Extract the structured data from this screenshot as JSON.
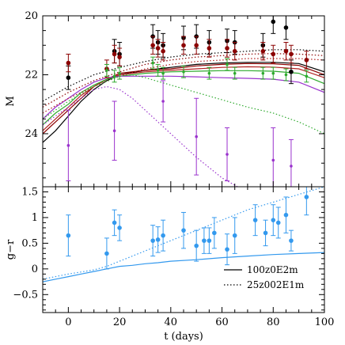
{
  "chart_data": [
    {
      "type": "line",
      "panel": "top",
      "ylabel": "M",
      "xlim": [
        -10,
        100
      ],
      "ylim": [
        25.8,
        20
      ],
      "y_inverted": true,
      "yticks": [
        20,
        22,
        24
      ],
      "grid": false,
      "series": [
        {
          "style": "solid",
          "color": "#000000",
          "x": [
            -10,
            -5,
            0,
            5,
            10,
            15,
            20,
            30,
            40,
            50,
            60,
            70,
            80,
            90,
            100
          ],
          "y": [
            24.3,
            23.9,
            23.4,
            22.9,
            22.5,
            22.2,
            22.0,
            21.85,
            21.75,
            21.65,
            21.6,
            21.58,
            21.58,
            21.62,
            21.9
          ]
        },
        {
          "style": "solid",
          "color": "#8b0000",
          "x": [
            -10,
            -5,
            0,
            5,
            10,
            15,
            20,
            30,
            40,
            50,
            60,
            70,
            80,
            90,
            100
          ],
          "y": [
            24.0,
            23.6,
            23.2,
            22.8,
            22.4,
            22.15,
            21.95,
            21.85,
            21.8,
            21.7,
            21.65,
            21.62,
            21.63,
            21.68,
            22.0
          ]
        },
        {
          "style": "solid",
          "color": "#b22222",
          "x": [
            -10,
            -5,
            0,
            5,
            10,
            15,
            20,
            30,
            40,
            50,
            60,
            70,
            80,
            90,
            100
          ],
          "y": [
            23.9,
            23.5,
            23.1,
            22.7,
            22.4,
            22.15,
            22.0,
            21.9,
            21.85,
            21.8,
            21.75,
            21.73,
            21.74,
            21.8,
            22.1
          ]
        },
        {
          "style": "solid",
          "color": "#2eaa2e",
          "x": [
            -10,
            -5,
            0,
            5,
            10,
            15,
            20,
            30,
            40,
            50,
            60,
            70,
            80,
            90,
            100
          ],
          "y": [
            23.7,
            23.3,
            23.0,
            22.6,
            22.35,
            22.15,
            22.05,
            21.95,
            21.9,
            21.88,
            21.86,
            21.86,
            21.88,
            21.95,
            22.3
          ]
        },
        {
          "style": "solid",
          "color": "#9a32cd",
          "x": [
            -10,
            -5,
            0,
            5,
            10,
            15,
            20,
            30,
            40,
            50,
            60,
            70,
            80,
            90,
            100
          ],
          "y": [
            23.5,
            23.1,
            22.8,
            22.5,
            22.25,
            22.1,
            22.05,
            22.05,
            22.05,
            22.07,
            22.1,
            22.12,
            22.15,
            22.25,
            22.6
          ]
        },
        {
          "style": "dotted",
          "color": "#000000",
          "x": [
            -10,
            0,
            10,
            20,
            30,
            40,
            50,
            60,
            70,
            80,
            90,
            100
          ],
          "y": [
            22.9,
            22.4,
            22.0,
            21.75,
            21.55,
            21.4,
            21.3,
            21.25,
            21.2,
            21.15,
            21.15,
            21.2
          ]
        },
        {
          "style": "dotted",
          "color": "#8b0000",
          "x": [
            -10,
            0,
            10,
            20,
            30,
            40,
            50,
            60,
            70,
            80,
            90,
            100
          ],
          "y": [
            23.1,
            22.6,
            22.2,
            21.9,
            21.65,
            21.5,
            21.4,
            21.35,
            21.3,
            21.28,
            21.3,
            21.35
          ]
        },
        {
          "style": "dotted",
          "color": "#b22222",
          "x": [
            -10,
            0,
            10,
            20,
            30,
            40,
            50,
            60,
            70,
            80,
            90,
            100
          ],
          "y": [
            23.3,
            22.8,
            22.4,
            22.05,
            21.8,
            21.65,
            21.55,
            21.5,
            21.45,
            21.45,
            21.45,
            21.5
          ]
        },
        {
          "style": "dotted",
          "color": "#2eaa2e",
          "x": [
            -10,
            0,
            10,
            20,
            25,
            30,
            40,
            50,
            60,
            70,
            80,
            90,
            100
          ],
          "y": [
            23.5,
            22.9,
            22.4,
            22.05,
            22.0,
            22.1,
            22.35,
            22.6,
            22.85,
            23.1,
            23.3,
            23.6,
            24.0
          ]
        },
        {
          "style": "dotted",
          "color": "#9a32cd",
          "x": [
            -10,
            0,
            5,
            10,
            15,
            20,
            25,
            30,
            40,
            50,
            60,
            70
          ],
          "y": [
            23.7,
            23.1,
            22.8,
            22.5,
            22.4,
            22.5,
            22.8,
            23.2,
            24.0,
            24.8,
            25.5,
            26.0
          ]
        }
      ],
      "observations": [
        {
          "color": "#000000",
          "x": [
            0,
            18,
            20,
            33,
            35,
            37,
            45,
            50,
            55,
            62,
            65,
            76,
            80,
            85,
            87
          ],
          "y": [
            22.1,
            21.2,
            21.3,
            20.7,
            20.9,
            21.0,
            20.75,
            20.7,
            20.9,
            20.85,
            20.9,
            21.0,
            20.2,
            20.4,
            21.9
          ],
          "err": [
            0.4,
            0.4,
            0.4,
            0.4,
            0.4,
            0.4,
            0.4,
            0.4,
            0.4,
            0.4,
            0.4,
            0.4,
            0.4,
            0.4,
            0.4
          ]
        },
        {
          "color": "#8b0000",
          "x": [
            0,
            15,
            18,
            20,
            33,
            35,
            37,
            45,
            50,
            55,
            62,
            65,
            76,
            80,
            85,
            87,
            93
          ],
          "y": [
            21.6,
            21.8,
            21.3,
            21.4,
            21.0,
            21.1,
            21.2,
            21.0,
            21.0,
            21.1,
            21.1,
            21.2,
            21.2,
            21.3,
            21.2,
            21.3,
            21.5
          ],
          "err": [
            0.3,
            0.3,
            0.3,
            0.3,
            0.3,
            0.3,
            0.3,
            0.3,
            0.3,
            0.3,
            0.3,
            0.3,
            0.3,
            0.3,
            0.3,
            0.3,
            0.3
          ]
        },
        {
          "color": "#2eaa2e",
          "x": [
            15,
            18,
            20,
            33,
            35,
            37,
            45,
            55,
            62,
            65,
            76,
            80,
            85,
            93
          ],
          "y": [
            21.85,
            22.05,
            21.95,
            21.6,
            21.85,
            21.95,
            21.9,
            21.95,
            21.65,
            21.95,
            21.95,
            21.95,
            22.0,
            22.05
          ],
          "err": [
            0.2,
            0.2,
            0.2,
            0.2,
            0.2,
            0.2,
            0.2,
            0.2,
            0.2,
            0.2,
            0.2,
            0.2,
            0.2,
            0.2
          ]
        },
        {
          "color": "#9a32cd",
          "x": [
            0,
            18,
            37,
            50,
            62,
            80,
            87
          ],
          "y": [
            24.4,
            23.9,
            22.9,
            24.1,
            24.7,
            24.9,
            25.1
          ],
          "err": [
            1.2,
            1.0,
            0.7,
            1.3,
            0.9,
            1.1,
            0.9
          ]
        }
      ]
    },
    {
      "type": "line",
      "panel": "bottom",
      "xlabel": "t (days)",
      "ylabel": "g−r",
      "xlim": [
        -10,
        100
      ],
      "ylim": [
        -0.85,
        1.6
      ],
      "xticks": [
        0,
        20,
        40,
        60,
        80,
        100
      ],
      "yticks": [
        -0.5,
        0,
        0.5,
        1,
        1.5
      ],
      "ytick_labels": [
        "−0.5",
        "0",
        "0.5",
        "1",
        "1.5"
      ],
      "grid": false,
      "legend": {
        "position": "bottom-right",
        "entries": [
          {
            "style": "solid",
            "label": "100z0E2m"
          },
          {
            "style": "dotted",
            "label": "25z002E1m"
          }
        ]
      },
      "series": [
        {
          "style": "solid",
          "color": "#3399ee",
          "x": [
            -10,
            -5,
            0,
            5,
            10,
            15,
            20,
            25,
            30,
            35,
            40,
            50,
            60,
            70,
            80,
            90,
            100
          ],
          "y": [
            -0.25,
            -0.2,
            -0.15,
            -0.1,
            -0.05,
            0.0,
            0.05,
            0.07,
            0.1,
            0.12,
            0.15,
            0.18,
            0.22,
            0.25,
            0.28,
            0.3,
            0.32
          ]
        },
        {
          "style": "dotted",
          "color": "#3399ee",
          "x": [
            -10,
            0,
            10,
            15,
            20,
            30,
            40,
            50,
            60,
            70,
            80,
            90,
            100
          ],
          "y": [
            -0.2,
            -0.1,
            -0.02,
            0.05,
            0.15,
            0.35,
            0.55,
            0.75,
            0.95,
            1.15,
            1.3,
            1.45,
            1.6
          ]
        }
      ],
      "observations": [
        {
          "color": "#3399ee",
          "x": [
            0,
            15,
            18,
            20,
            33,
            35,
            37,
            45,
            50,
            53,
            55,
            57,
            62,
            65,
            73,
            77,
            80,
            82,
            85,
            87,
            93
          ],
          "y": [
            0.65,
            0.3,
            0.9,
            0.8,
            0.55,
            0.57,
            0.65,
            0.75,
            0.45,
            0.55,
            0.55,
            0.7,
            0.38,
            0.65,
            0.95,
            0.7,
            0.95,
            0.9,
            1.05,
            0.55,
            1.4
          ],
          "err": [
            0.4,
            0.3,
            0.25,
            0.25,
            0.3,
            0.25,
            0.3,
            0.35,
            0.3,
            0.25,
            0.25,
            0.3,
            0.3,
            0.35,
            0.3,
            0.25,
            0.3,
            0.3,
            0.35,
            0.2,
            0.35
          ]
        }
      ]
    }
  ]
}
